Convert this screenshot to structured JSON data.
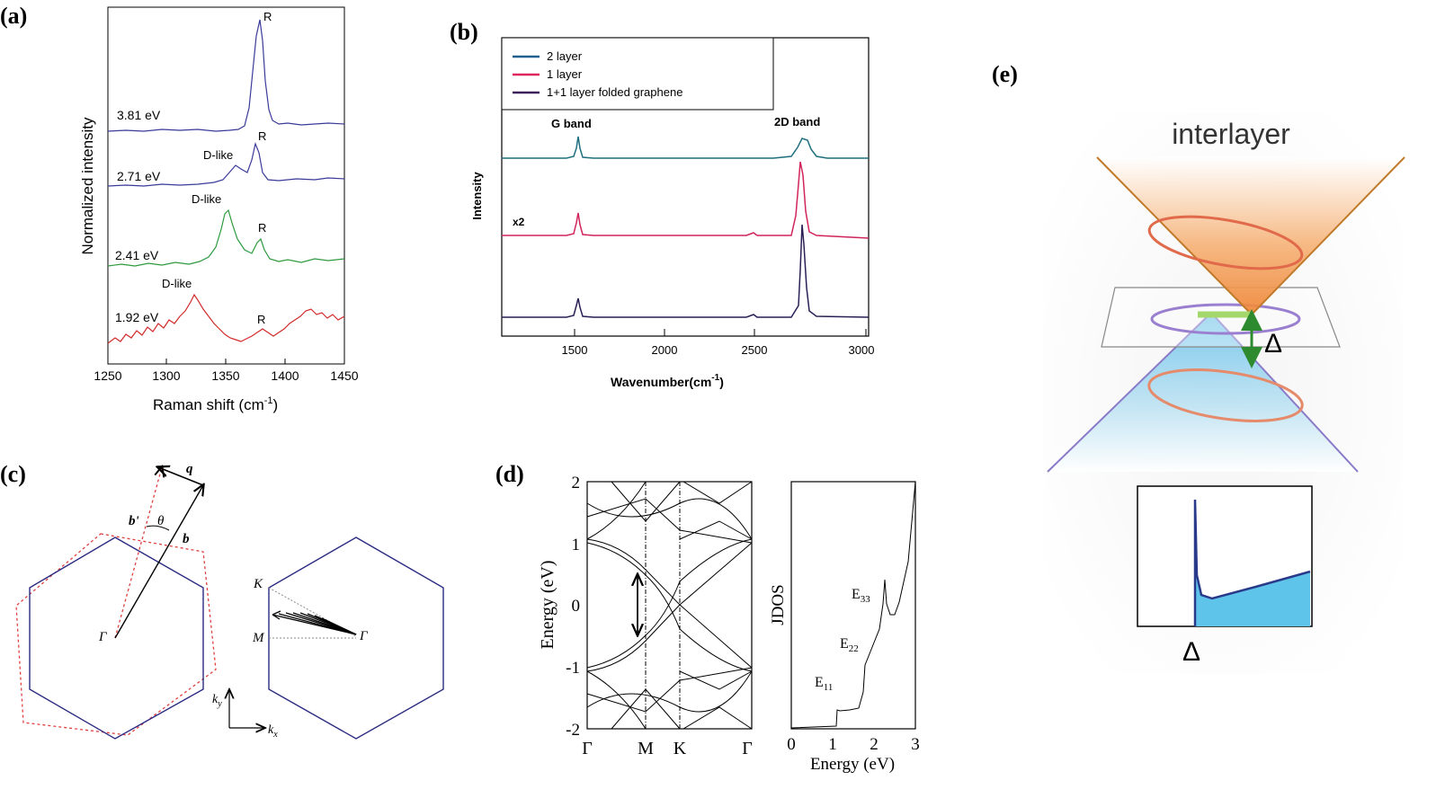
{
  "panels": {
    "a": {
      "label": "(a)",
      "ylabel": "Normalized intensity",
      "xlabel": "Raman shift (cm",
      "xlabel_sup": "-1",
      "xlabel_close": ")",
      "xticks": [
        "1250",
        "1300",
        "1350",
        "1400",
        "1450"
      ],
      "spectra": [
        {
          "energy": "3.81 eV",
          "color": "#3a3a9a",
          "peaks": [
            {
              "text": "R"
            }
          ]
        },
        {
          "energy": "2.71 eV",
          "color": "#3a3a9a",
          "peaks": [
            {
              "text": "D-like"
            },
            {
              "text": "R"
            }
          ]
        },
        {
          "energy": "2.41 eV",
          "color": "#2e9a3e",
          "peaks": [
            {
              "text": "D-like"
            },
            {
              "text": "R"
            }
          ]
        },
        {
          "energy": "1.92 eV",
          "color": "#d22a2a",
          "peaks": [
            {
              "text": "D-like"
            },
            {
              "text": "R"
            }
          ]
        }
      ]
    },
    "b": {
      "label": "(b)",
      "ylabel": "Intensity",
      "xlabel": "Wavenumber(cm",
      "xlabel_sup": "-1",
      "xlabel_close": ")",
      "xticks": [
        "1500",
        "2000",
        "2500",
        "3000"
      ],
      "legend": [
        {
          "name": "2 layer",
          "color": "#1f5f8f"
        },
        {
          "name": "1 layer",
          "color": "#e0245e"
        },
        {
          "name": "1+1 layer folded graphene",
          "color": "#3a1f5a"
        }
      ],
      "annotations": {
        "g_band": "G band",
        "d2_band": "2D band",
        "scale": "x2"
      }
    },
    "c": {
      "label": "(c)",
      "vectors": {
        "q": "q",
        "b_prime": "b'",
        "b": "b",
        "theta": "θ"
      },
      "points": {
        "gamma_left": "Γ",
        "gamma_right": "Γ",
        "K": "K",
        "M": "M"
      },
      "axes": {
        "ky": "k",
        "ky_sub": "y",
        "kx": "k",
        "kx_sub": "x"
      }
    },
    "d": {
      "label": "(d)",
      "band_ylabel": "Energy (eV)",
      "band_yticks": [
        "2",
        "1",
        "0",
        "-1",
        "-2"
      ],
      "band_xticks": [
        "Γ",
        "M",
        "K",
        "Γ"
      ],
      "jdos_ylabel": "JDOS",
      "jdos_xlabel": "Energy (eV)",
      "jdos_xticks": [
        "0",
        "1",
        "2",
        "3"
      ],
      "jdos_peaks": [
        {
          "text": "E",
          "sub": "11"
        },
        {
          "text": "E",
          "sub": "22"
        },
        {
          "text": "E",
          "sub": "33"
        }
      ]
    },
    "e": {
      "label": "(e)",
      "title": "interlayer",
      "delta_arrow": "Δ",
      "delta_axis": "Δ",
      "colors": {
        "upper_cone": "#f08a3c",
        "lower_cone": "#8fcfea",
        "ring": "#9a7fd0",
        "arrow": "#2e8a2e",
        "gap_bar": "#a4d86a",
        "dos_fill": "#5ec4ea"
      }
    }
  }
}
